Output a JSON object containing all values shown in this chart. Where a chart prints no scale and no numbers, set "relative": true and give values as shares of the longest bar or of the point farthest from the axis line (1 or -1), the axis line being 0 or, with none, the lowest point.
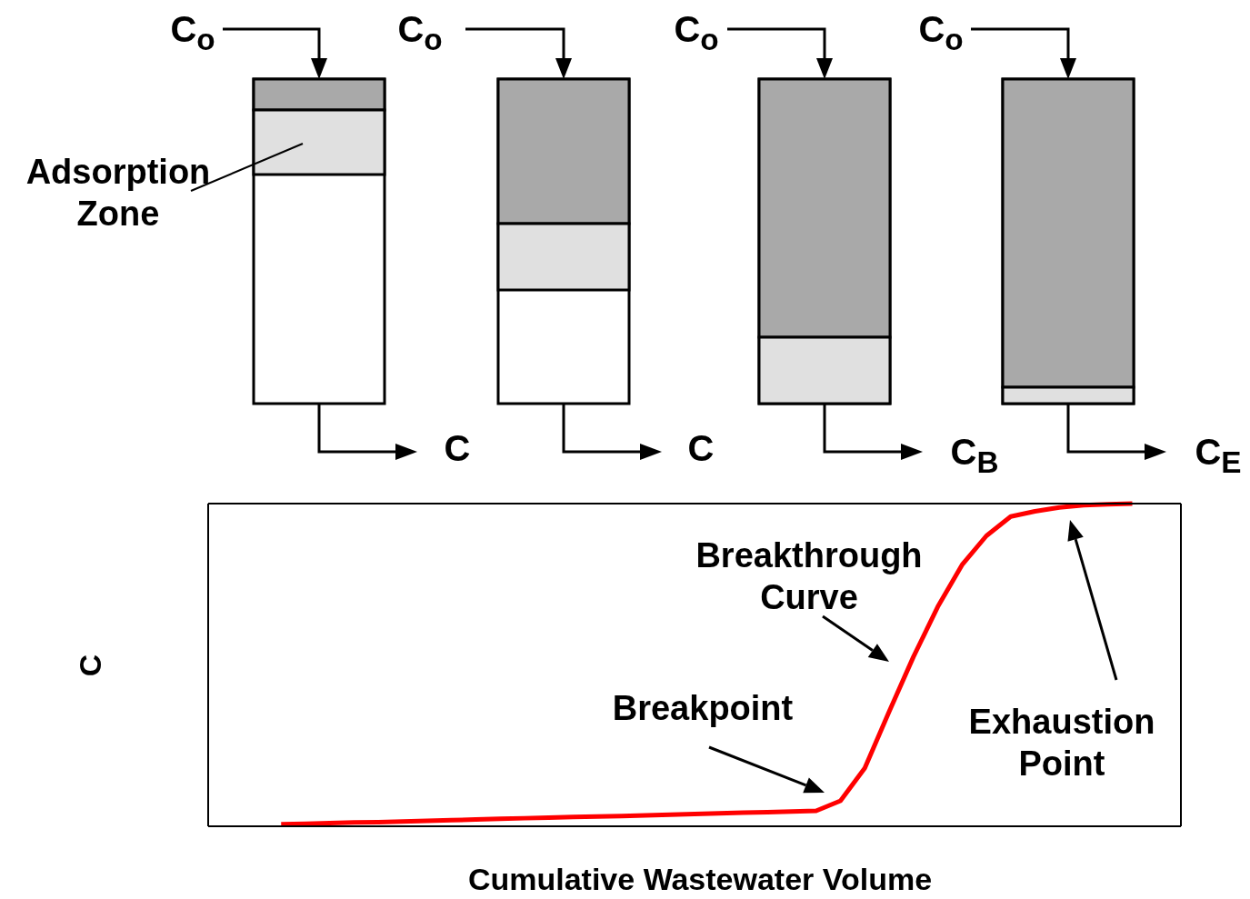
{
  "chart_data": {
    "type": "line",
    "relative": true,
    "xlabel": "Cumulative Wastewater Volume",
    "ylabel": "C",
    "marker": "none",
    "line_style": "solid",
    "categories": [
      null,
      null,
      null,
      null,
      null,
      null,
      null,
      null,
      null,
      null,
      null,
      null,
      null,
      null,
      null,
      null,
      null,
      null,
      null,
      null,
      null,
      null,
      null,
      null,
      null,
      null,
      null,
      null,
      null,
      null,
      null,
      null,
      null,
      null,
      null,
      null,
      null,
      null,
      null,
      null,
      null
    ],
    "series": [
      {
        "color": "#ff0000",
        "values": [
          null,
          null,
          null,
          0.006,
          0.008,
          0.01,
          0.012,
          0.013,
          0.015,
          0.017,
          0.019,
          0.021,
          0.023,
          0.025,
          0.027,
          0.029,
          0.03,
          0.032,
          0.034,
          0.036,
          0.038,
          0.04,
          0.042,
          0.044,
          0.046,
          0.048,
          0.079,
          0.18,
          0.355,
          0.525,
          0.68,
          0.81,
          0.9,
          0.96,
          0.976,
          0.988,
          0.995,
          0.998,
          1,
          null,
          null
        ]
      }
    ],
    "annotations": [
      "C$_{o}$",
      "C$_{o}$",
      "C$_{o}$",
      "C$_{o}$",
      "C",
      "C",
      "C$_{B}$",
      "C$_{E}$",
      "Adsorption Zone",
      "Breakthrough Curve",
      "Breakpoint",
      "Exhaustion Point"
    ]
  }
}
